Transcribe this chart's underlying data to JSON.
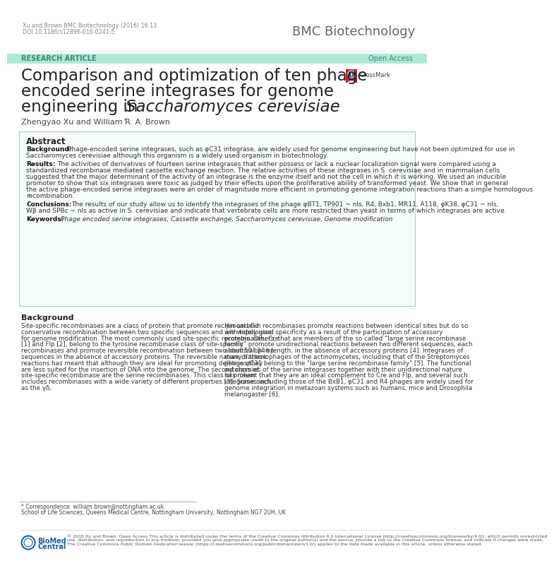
{
  "header_citation": "Xu and Brown BMC Biotechnology (2016) 16:13",
  "header_doi": "DOI 10.1186/s12896-016-0241-5",
  "journal_name": "BMC Biotechnology",
  "banner_color": "#aee8d8",
  "banner_text_left": "RESEARCH ARTICLE",
  "banner_text_right": "Open Access",
  "title_line1": "Comparison and optimization of ten phage",
  "title_line2": "encoded serine integrases for genome",
  "title_line3_normal": "engineering in ",
  "title_line3_italic": "Saccharomyces cerevisiae",
  "authors": "Zhengyao Xu and William R. A. Brown",
  "abstract_box_color": "#f5fcfc",
  "abstract_box_border": "#aacccc",
  "abstract_title": "Abstract",
  "background_label": "Background:",
  "background_text": "Phage-encoded serine integrases, such as φC31 integrase, are widely used for genome engineering but have not been optimized for use in Saccharomyces cerevisiae although this organism is a widely used organism in biotechnology.",
  "results_label": "Results:",
  "results_text": "The activities of derivatives of fourteen serine integrases that either possess or lack a nuclear localization signal were compared using a standardized recombinase mediated cassette exchange reaction. The relative activities of these integrases in S. cerevisiae and in mammalian cells suggested that the major determinant of the activity of an integrase is the enzyme itself and not the cell in which it is working. We used an inducible promoter to show that six integrases were toxic as judged by their effects upon the proliferative ability of transformed yeast. We show that in general the active phage-encoded serine integrases were an order of magnitude more efficient in promoting genome integration reactions than a simple homologous recombination.",
  "conclusions_label": "Conclusions:",
  "conclusions_text": "The results of our study allow us to identify the integrases of the phage φBT1, TP901 ~ nls, R4, Bxb1, MR11, A118, φK38, φC31 ~ nls, Wβ and SPBc ~ nls as active in S. cerevisiae and indicate that vertebrate cells are more restricted than yeast in terms of which integrases are active.",
  "keywords_label": "Keywords:",
  "keywords_text": "Phage encoded serine integrases, Cassette exchange, Saccharomyces cerevisiae, Genome modification",
  "background_section_title": "Background",
  "background_col1": "Site-specific recombinases are a class of protein that promote reciprocal and conservative recombination between two specific sequences and are widely used for genome modification. The most commonly used site-specific recombinases, Cre [1] and Flp [2], belong to the tyrosine recombinase class of site-specific recombinases and promote reversible recombination between two identical 34 bp sequences in the absence of accessory proteins. The reversible nature of these reactions has meant that although they are ideal for promoting deletions they are less suited for the insertion of DNA into the genome. The second class of site-specific recombinase are the serine recombinases. This class of protein includes recombinases with a wide variety of different properties [3]. Some such as the γδ,",
  "background_col2": "Hin and Gin recombinases promote reactions between identical sites but do so with topological specificity as a result of the participation of accessory proteins. Others, that are members of the so called \"large serine recombinase family\" promote unidirectional reactions between two different sequences, each about 50 bp in length, in the absence of accessory proteins [4]. Integrases of many bacteriophages of the actinomycetes, including that of the Streptomyces phage φC31 belong to the \"large serine recombinase family\" [5]. The functional autonomies of the serine integrases together with their unidirectional nature has meant that they are an ideal complement to Cre and Flp, and several such integrases including those of the BxB1, φC31 and R4 phages are widely used for genome integration in metazoan systems such as humans, mice and Drosophila melanogaster [6].",
  "footnote_text": "* Correspondence: william.brown@nottingham.ac.uk",
  "footnote_affil": "School of Life Sciences, Queens Medical Centre, Nottingham University, Nottingham NG7 2UH, UK",
  "footer_text": "© 2016 Xu and Brown. Open Access This article is distributed under the terms of the Creative Commons Attribution 4.0 International License (http://creativecommons.org/licenses/by/4.0/), which permits unrestricted use, distribution, and reproduction in any medium, provided you give appropriate credit to the original author(s) and the source, provide a link to the Creative Commons license, and indicate if changes were made. The Creative Commons Public Domain Dedication waiver (https://creativecommons.org/publicdomain/zero/1.0/) applies to the data made available in this article, unless otherwise stated.",
  "bg_color": "#ffffff",
  "text_dark": "#222222",
  "text_gray": "#777777",
  "text_body": "#333333"
}
